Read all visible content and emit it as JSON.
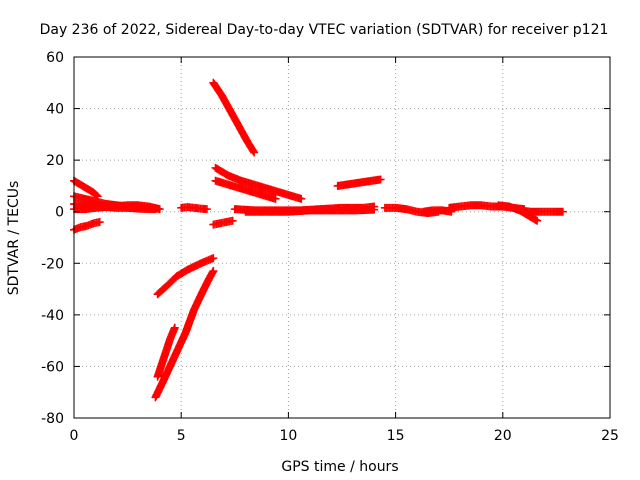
{
  "chart_data": {
    "type": "scatter",
    "title": "Day 236 of 2022, Sidereal Day-to-day VTEC variation (SDTVAR) for receiver p121",
    "xlabel": "GPS time / hours",
    "ylabel": "SDTVAR / TECUs",
    "xlim": [
      0,
      25
    ],
    "ylim": [
      -80,
      60
    ],
    "xticks": [
      0,
      5,
      10,
      15,
      20,
      25
    ],
    "yticks": [
      -80,
      -60,
      -40,
      -20,
      0,
      20,
      40,
      60
    ],
    "grid": true,
    "legend": "none",
    "marker": "plus",
    "color": "#ff0000",
    "series": [
      {
        "x": [
          0.0,
          0.3,
          0.6,
          0.9,
          1.1
        ],
        "y": [
          12,
          10.5,
          9,
          7.5,
          6
        ]
      },
      {
        "x": [
          0.0,
          0.5,
          1.0,
          1.5,
          2.0,
          2.5,
          3.0,
          3.5,
          3.8
        ],
        "y": [
          6,
          5,
          4,
          3,
          2.5,
          2,
          1.8,
          1.5,
          1.2
        ]
      },
      {
        "x": [
          0.0,
          0.5,
          1.0,
          1.5,
          2.0,
          2.5,
          3.0,
          3.5,
          3.8
        ],
        "y": [
          3,
          2.5,
          2,
          1.8,
          1.5,
          1.5,
          1.2,
          1,
          1
        ]
      },
      {
        "x": [
          0.0,
          0.5,
          1.0,
          1.5,
          2.0,
          2.5,
          3.0,
          3.5,
          4.0
        ],
        "y": [
          1,
          1,
          1.5,
          1.8,
          2.2,
          2.5,
          2.5,
          2,
          1
        ]
      },
      {
        "x": [
          0.0,
          0.3,
          0.6,
          0.9,
          1.2
        ],
        "y": [
          -7,
          -6,
          -5.5,
          -4.5,
          -4
        ]
      },
      {
        "x": [
          3.9,
          4.3,
          4.8,
          5.3,
          5.8,
          6.2,
          6.5
        ],
        "y": [
          -32,
          -29,
          -25,
          -22.5,
          -20.5,
          -19,
          -18
        ]
      },
      {
        "x": [
          3.8,
          4.2,
          4.7,
          5.2,
          5.6,
          6.0,
          6.3,
          6.5
        ],
        "y": [
          -72,
          -65,
          -56,
          -47,
          -38,
          -31,
          -26,
          -23
        ]
      },
      {
        "x": [
          3.9,
          4.1,
          4.3,
          4.5,
          4.7
        ],
        "y": [
          -64,
          -59,
          -54,
          -49,
          -45
        ]
      },
      {
        "x": [
          5.0,
          5.3,
          5.6,
          5.9,
          6.2
        ],
        "y": [
          1.5,
          1.8,
          1.5,
          1.2,
          1
        ]
      },
      {
        "x": [
          6.5,
          6.9,
          7.3,
          7.7,
          8.1,
          8.4
        ],
        "y": [
          50,
          45,
          39,
          33,
          27,
          23
        ]
      },
      {
        "x": [
          6.6,
          7.2,
          7.8,
          8.4,
          9.0,
          9.6,
          10.2,
          10.6
        ],
        "y": [
          17,
          14,
          12,
          10.5,
          9,
          7.5,
          6,
          5
        ]
      },
      {
        "x": [
          6.6,
          7.2,
          7.8,
          8.4,
          9.0,
          9.4
        ],
        "y": [
          12,
          10.5,
          9,
          7.5,
          6,
          5
        ]
      },
      {
        "x": [
          6.5,
          6.8,
          7.1,
          7.4
        ],
        "y": [
          -5,
          -4.5,
          -4,
          -3.5
        ]
      },
      {
        "x": [
          7.5,
          8.5,
          9.5,
          10.5,
          11.5,
          12.5,
          13.5,
          14.0
        ],
        "y": [
          1,
          0.5,
          0.5,
          0.5,
          1,
          1.5,
          1.5,
          2
        ]
      },
      {
        "x": [
          8.0,
          9.0,
          10.0,
          11.0,
          12.0,
          13.0,
          14.0
        ],
        "y": [
          0,
          0,
          0,
          0.5,
          0.5,
          0.5,
          0.8
        ]
      },
      {
        "x": [
          12.3,
          12.7,
          13.1,
          13.5,
          13.9,
          14.3
        ],
        "y": [
          10,
          10.5,
          11,
          11.5,
          12,
          12.5
        ]
      },
      {
        "x": [
          14.5,
          15.0,
          15.5,
          16.0,
          16.5,
          17.0
        ],
        "y": [
          1.5,
          1.5,
          1,
          0,
          -0.5,
          0
        ]
      },
      {
        "x": [
          16.3,
          16.7,
          17.2,
          17.6
        ],
        "y": [
          0,
          0.5,
          0.5,
          0
        ]
      },
      {
        "x": [
          17.5,
          18.0,
          18.5,
          19.0,
          19.5,
          20.0,
          20.5,
          21.0
        ],
        "y": [
          1.5,
          2,
          2.5,
          2.5,
          2,
          2,
          1.5,
          1
        ]
      },
      {
        "x": [
          19.8,
          20.3,
          20.8,
          21.2,
          21.6
        ],
        "y": [
          2.5,
          2,
          0.5,
          -1.5,
          -3.5
        ]
      },
      {
        "x": [
          20.8,
          21.3,
          21.8,
          22.3,
          22.8
        ],
        "y": [
          0.5,
          0,
          0,
          0,
          0
        ]
      }
    ]
  }
}
